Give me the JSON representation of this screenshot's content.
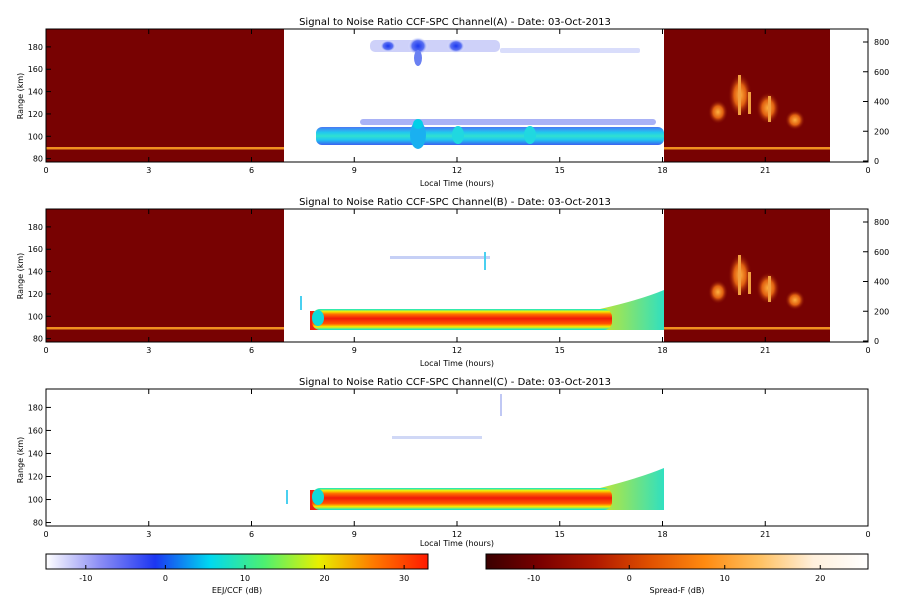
{
  "chart_data": [
    {
      "type": "heatmap",
      "title": "Signal to Noise Ratio CCF-SPC Channel(A) - Date: 03-Oct-2013",
      "xlabel": "Local Time (hours)",
      "ylabel": "Range (km)",
      "xlim": [
        0,
        24
      ],
      "ylim": [
        77,
        196
      ],
      "xticks": [
        "0",
        "3",
        "6",
        "9",
        "12",
        "15",
        "18",
        "21",
        "0"
      ],
      "yticks": [
        "80",
        "100",
        "120",
        "140",
        "160",
        "180"
      ],
      "right_yticks": [
        "0",
        "200",
        "400",
        "600",
        "800"
      ],
      "night_blocks_hours": [
        [
          0,
          7
        ],
        [
          18,
          22.8
        ]
      ],
      "day_block_hours": [
        7,
        18
      ],
      "features": [
        {
          "name": "EEJ layer",
          "x_start": 8.0,
          "x_end": 18.0,
          "range_km": [
            99,
            108
          ],
          "snr_db_peak": 5
        },
        {
          "name": "EEJ upper band",
          "x_start": 8.5,
          "x_end": 17.5,
          "range_km": [
            111,
            116
          ],
          "snr_db_peak": -8
        },
        {
          "name": "150 km echoes",
          "x_start": 9.5,
          "x_end": 17.0,
          "range_km": [
            172,
            184
          ],
          "snr_db_peak": -6
        },
        {
          "name": "night line",
          "range_km": [
            92,
            93
          ]
        },
        {
          "name": "spread-F",
          "x_start": 19.5,
          "x_end": 22.5,
          "range_km": [
            106,
            143
          ]
        }
      ]
    },
    {
      "type": "heatmap",
      "title": "Signal to Noise Ratio CCF-SPC Channel(B) - Date: 03-Oct-2013",
      "xlabel": "Local Time (hours)",
      "ylabel": "Range (km)",
      "xlim": [
        0,
        24
      ],
      "ylim": [
        77,
        196
      ],
      "xticks": [
        "0",
        "3",
        "6",
        "9",
        "12",
        "15",
        "18",
        "21",
        "0"
      ],
      "yticks": [
        "80",
        "100",
        "120",
        "140",
        "160",
        "180"
      ],
      "right_yticks": [
        "0",
        "200",
        "400",
        "600",
        "800"
      ],
      "night_blocks_hours": [
        [
          0,
          7
        ],
        [
          18,
          22.8
        ]
      ],
      "day_block_hours": [
        7,
        18
      ],
      "features": [
        {
          "name": "EEJ layer",
          "x_start": 7.8,
          "x_end": 18.0,
          "range_km": [
            95,
            108
          ],
          "snr_db_peak": 30
        },
        {
          "name": "night line",
          "range_km": [
            92,
            93
          ]
        },
        {
          "name": "spread-F",
          "x_start": 19.5,
          "x_end": 22.5,
          "range_km": [
            106,
            143
          ]
        }
      ]
    },
    {
      "type": "heatmap",
      "title": "Signal to Noise Ratio CCF-SPC Channel(C) - Date: 03-Oct-2013",
      "xlabel": "Local Time (hours)",
      "ylabel": "Range (km)",
      "xlim": [
        0,
        24
      ],
      "ylim": [
        77,
        196
      ],
      "xticks": [
        "0",
        "3",
        "6",
        "9",
        "12",
        "15",
        "18",
        "21",
        "0"
      ],
      "yticks": [
        "80",
        "100",
        "120",
        "140",
        "160",
        "180"
      ],
      "features": [
        {
          "name": "EEJ layer",
          "x_start": 7.8,
          "x_end": 18.0,
          "range_km": [
            95,
            108
          ],
          "snr_db_peak": 30
        }
      ]
    }
  ],
  "colorbars": [
    {
      "label": "EEJ/CCF (dB)",
      "range": [
        -15,
        33
      ],
      "ticks": [
        "-10",
        "0",
        "10",
        "20",
        "30"
      ],
      "tick_values": [
        -10,
        0,
        10,
        20,
        30
      ],
      "colors": [
        "#ffffff",
        "#8a8cf5",
        "#1c36f2",
        "#00d8f0",
        "#4df070",
        "#e8f000",
        "#ff7a00",
        "#ff1a00"
      ]
    },
    {
      "label": "Spread-F (dB)",
      "range": [
        -15,
        25
      ],
      "ticks": [
        "-10",
        "0",
        "10",
        "20"
      ],
      "tick_values": [
        -10,
        0,
        10,
        20
      ],
      "colors": [
        "#3a0000",
        "#7a0000",
        "#b01800",
        "#e05000",
        "#ff8a10",
        "#ffc060",
        "#fff0dc",
        "#ffffff"
      ]
    }
  ],
  "colors": {
    "night": "#780202",
    "night_line": "#f09020",
    "spreadf_bright": "#f39a30",
    "eej_core": "#f02010",
    "eej_edge_cyan": "#00e0d0",
    "eej_edge_yellow": "#f5f500",
    "channel_a_core": "#30c0f0",
    "channel_a_outer": "#3060f0"
  }
}
